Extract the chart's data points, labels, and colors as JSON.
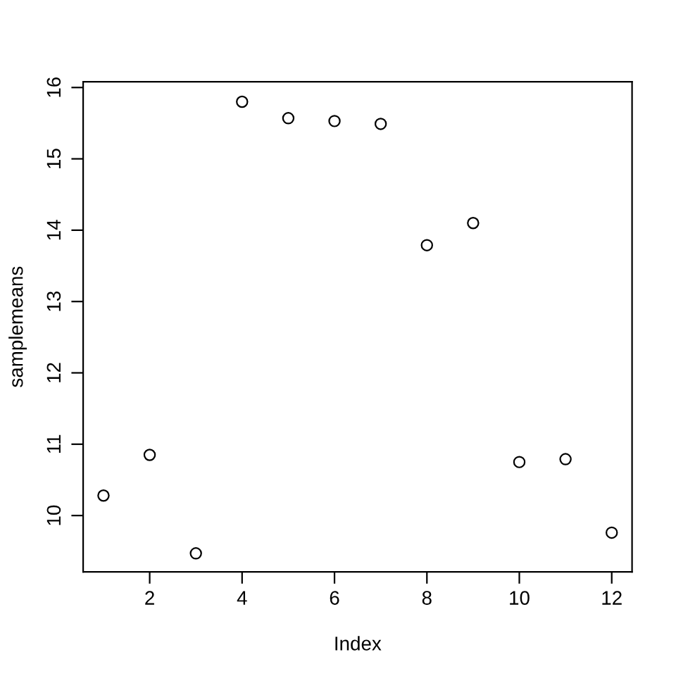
{
  "chart_data": {
    "type": "scatter",
    "xlabel": "Index",
    "ylabel": "samplemeans",
    "x": [
      1,
      2,
      3,
      4,
      5,
      6,
      7,
      8,
      9,
      10,
      11,
      12
    ],
    "series": [
      {
        "color": "#000000",
        "values": [
          10.28,
          10.85,
          9.47,
          15.8,
          15.57,
          15.53,
          15.49,
          13.79,
          14.1,
          10.75,
          10.79,
          9.76
        ]
      }
    ],
    "xlim": [
      0.56,
      12.44
    ],
    "ylim": [
      9.21,
      16.08
    ],
    "xticks": [
      2,
      4,
      6,
      8,
      10,
      12
    ],
    "yticks": [
      10,
      11,
      12,
      13,
      14,
      15,
      16
    ],
    "marker": "circle",
    "grid": false
  }
}
